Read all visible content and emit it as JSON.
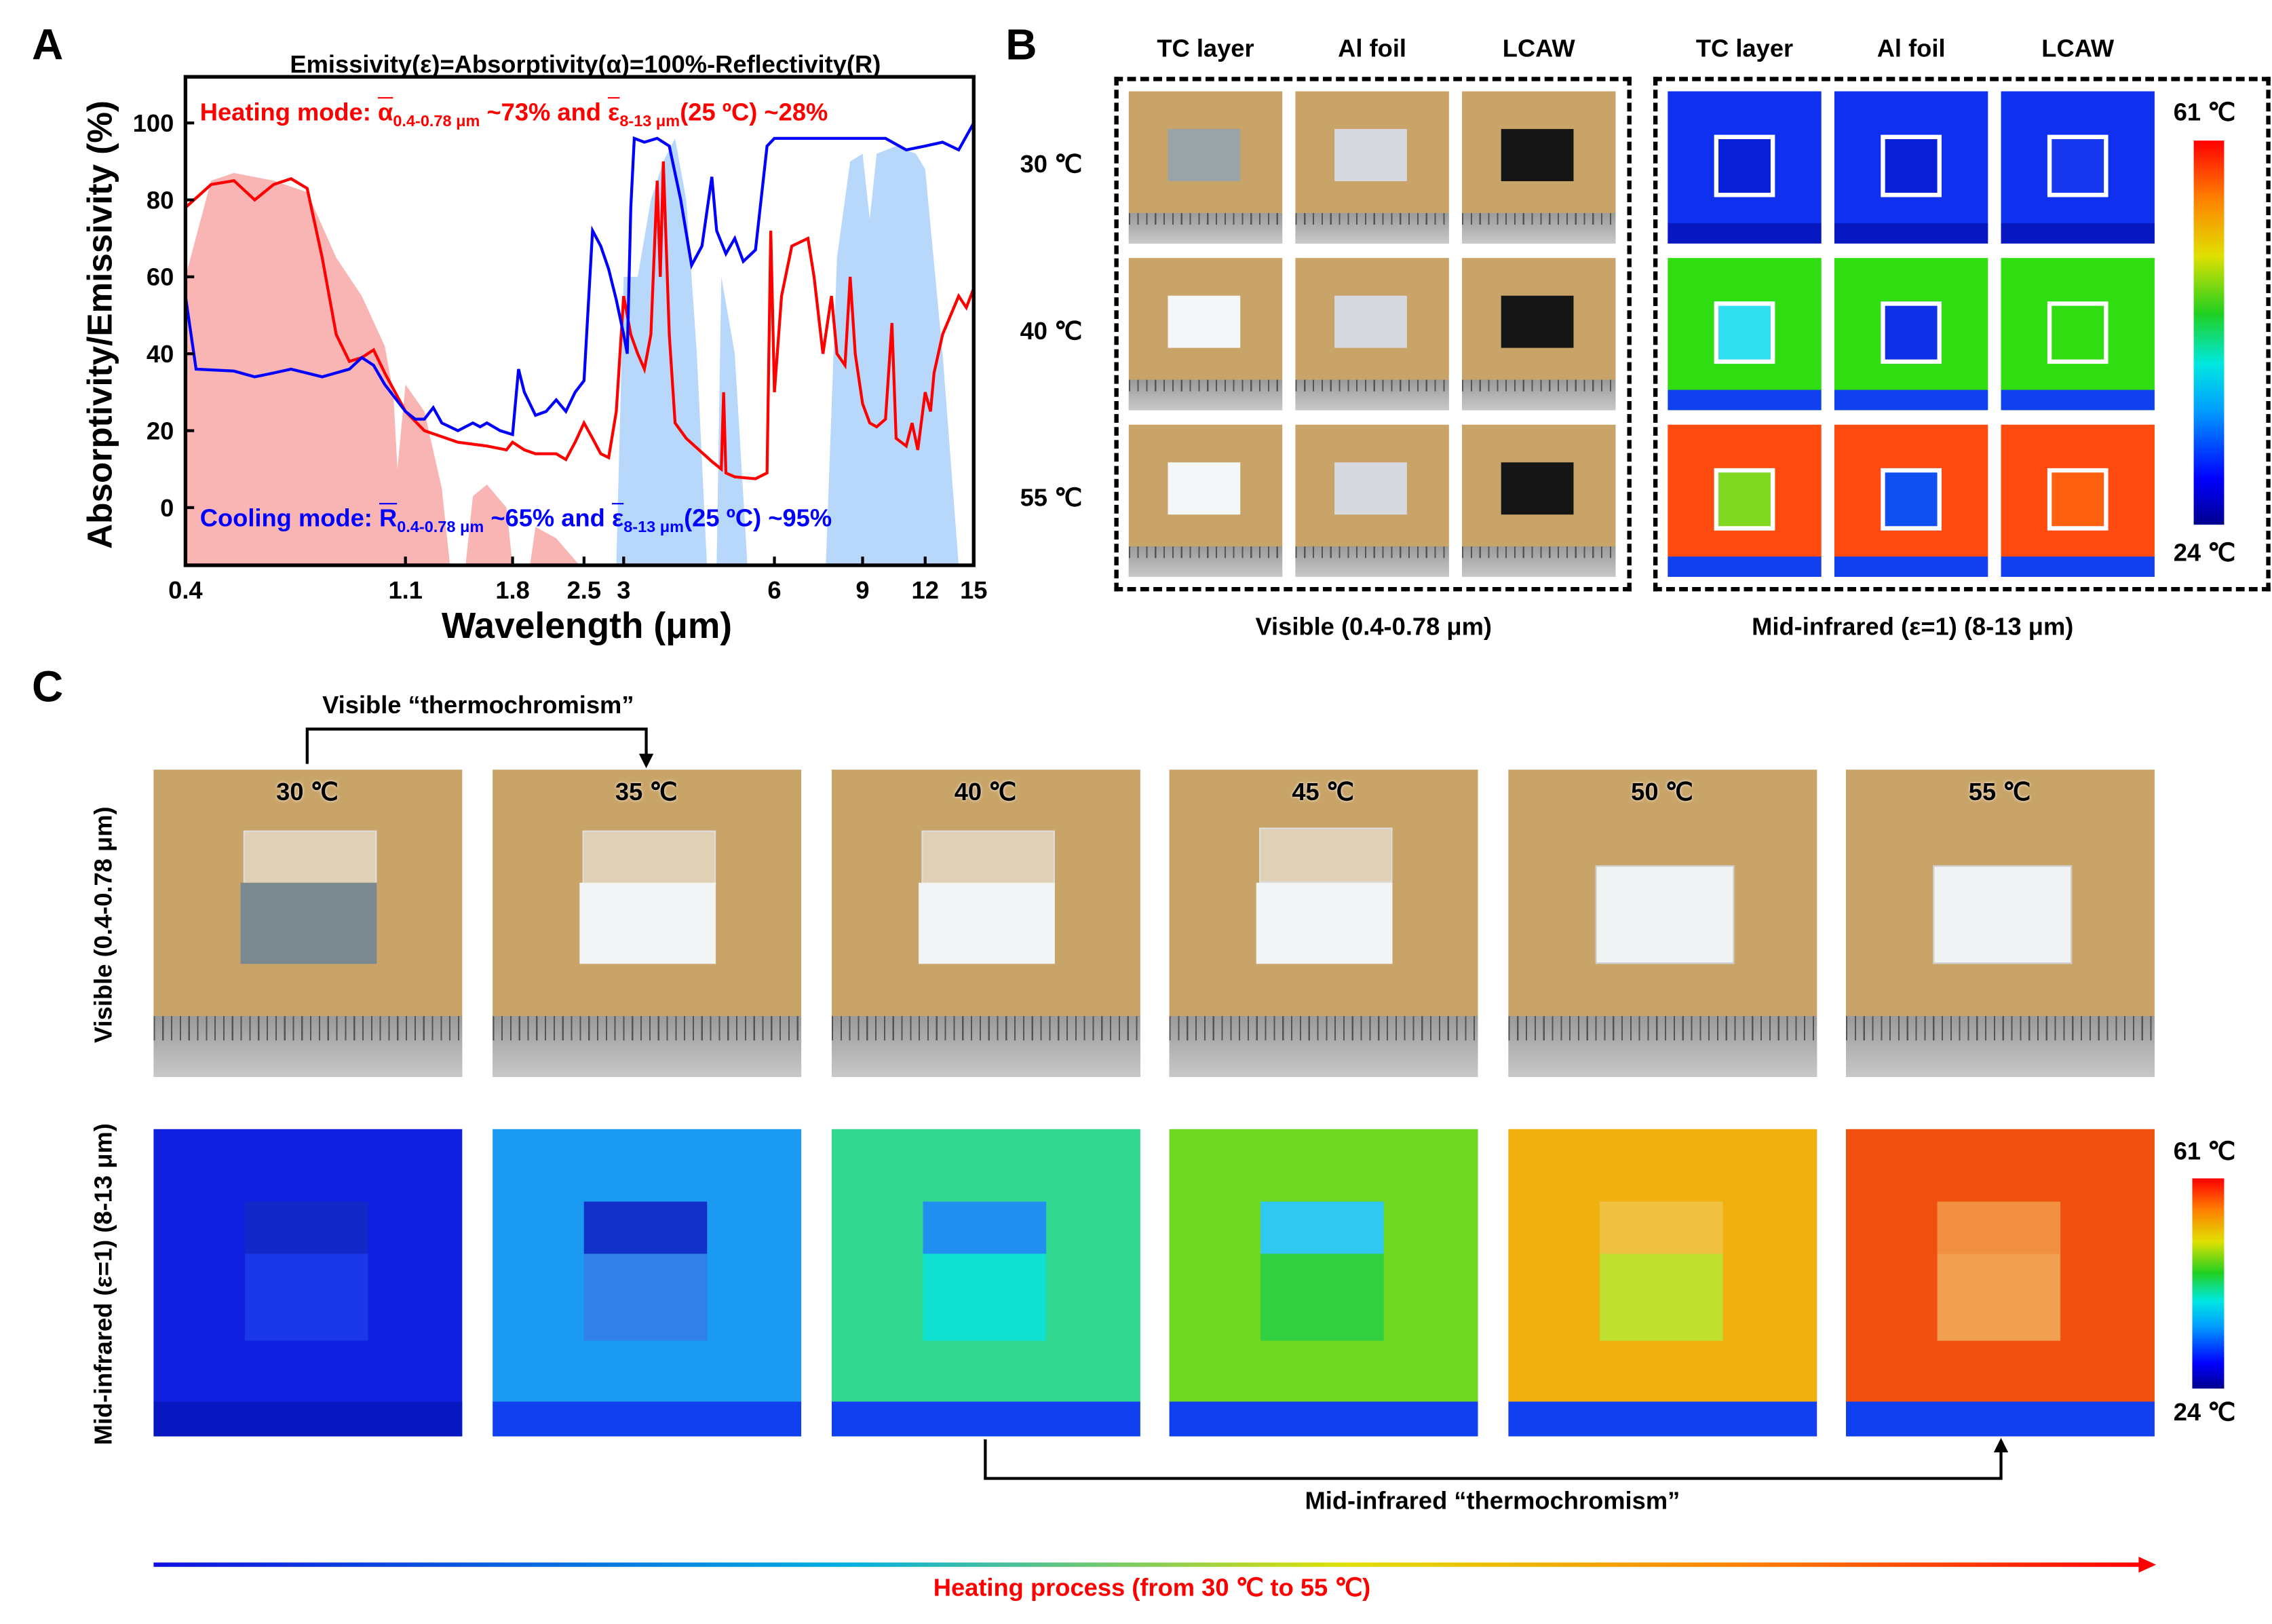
{
  "panel_labels": {
    "a": "A",
    "b": "B",
    "c": "C"
  },
  "panel_a": {
    "heating": {
      "prefix": "Heating mode:",
      "sym": "α",
      "sub1": "0.4-0.78 μm",
      "mid": "~73% and",
      "sym2": "ε",
      "sub2": "8-13 μm",
      "suffix": "(25 ºC) ~28%",
      "color": "#ff0000"
    },
    "cooling": {
      "prefix": "Cooling mode:",
      "sym": "R",
      "sub1": "0.4-0.78 μm",
      "mid": "~65% and",
      "sym2": "ε",
      "sub2": "8-13 μm",
      "suffix": "(25 ºC) ~95%",
      "color": "#0000ff"
    }
  },
  "chart_data": {
    "type": "line",
    "title": "Emissivity(ε)=Absorptivity(α)=100%-Reflectivity(R)",
    "xlabel": "Wavelength (μm)",
    "ylabel": "Absorptivity/Emissivity (%)",
    "xscale": "log",
    "xlim": [
      0.4,
      15
    ],
    "ylim": [
      -15,
      112
    ],
    "xticks": [
      "0.4",
      "1.1",
      "1.8",
      "2.5",
      "3",
      "6",
      "9",
      "12",
      "15"
    ],
    "yticks": [
      "0",
      "20",
      "40",
      "60",
      "80",
      "100"
    ],
    "grid": false,
    "series": [
      {
        "color": "#ff0000",
        "x": [
          0.4,
          0.45,
          0.5,
          0.55,
          0.6,
          0.65,
          0.7,
          0.75,
          0.8,
          0.85,
          0.9,
          0.95,
          1.0,
          1.1,
          1.2,
          1.4,
          1.6,
          1.75,
          1.8,
          1.9,
          2.0,
          2.2,
          2.3,
          2.4,
          2.5,
          2.6,
          2.7,
          2.8,
          2.9,
          3.0,
          3.1,
          3.2,
          3.3,
          3.4,
          3.5,
          3.55,
          3.6,
          3.7,
          3.8,
          4.0,
          4.5,
          4.7,
          4.75,
          4.8,
          5.0,
          5.5,
          5.8,
          5.9,
          6.0,
          6.2,
          6.5,
          7.0,
          7.2,
          7.5,
          7.8,
          8.0,
          8.3,
          8.5,
          8.7,
          9.0,
          9.3,
          9.6,
          10.0,
          10.3,
          10.5,
          11.0,
          11.3,
          11.6,
          12.0,
          12.3,
          12.5,
          13,
          14,
          14.5,
          15
        ],
        "y": [
          78,
          84,
          85,
          80,
          84,
          85.5,
          83,
          65,
          45,
          38,
          39,
          41,
          35,
          25,
          20,
          17,
          16,
          15,
          17,
          15,
          14,
          14,
          12.5,
          17,
          22,
          18,
          14,
          13,
          25,
          55,
          45,
          40,
          36,
          45,
          85,
          60,
          90,
          45,
          22,
          18,
          12,
          10,
          30,
          9,
          8,
          7.5,
          9,
          72,
          30,
          55,
          68,
          70,
          60,
          40,
          55,
          40,
          37,
          60,
          40,
          27,
          22,
          21,
          23,
          48,
          18,
          16,
          22,
          15,
          30,
          25,
          35,
          45,
          55,
          52,
          57
        ]
      },
      {
        "color": "#0000ff",
        "x": [
          0.4,
          0.42,
          0.5,
          0.55,
          0.6,
          0.65,
          0.75,
          0.85,
          0.9,
          0.95,
          1.0,
          1.1,
          1.15,
          1.2,
          1.25,
          1.3,
          1.4,
          1.5,
          1.55,
          1.6,
          1.7,
          1.8,
          1.85,
          1.9,
          2.0,
          2.1,
          2.2,
          2.3,
          2.4,
          2.5,
          2.6,
          2.7,
          2.8,
          2.9,
          3.0,
          3.05,
          3.1,
          3.15,
          3.3,
          3.5,
          3.7,
          3.9,
          4.1,
          4.3,
          4.5,
          4.6,
          4.8,
          5.0,
          5.2,
          5.5,
          5.8,
          6.0,
          7,
          8,
          9,
          10,
          11,
          12,
          13,
          14,
          15
        ],
        "y": [
          55,
          36,
          35.5,
          34,
          35,
          36,
          34,
          36,
          39,
          37,
          32,
          25,
          23,
          23,
          26,
          22,
          20,
          22,
          21,
          22,
          20,
          19,
          36,
          30,
          24,
          25,
          28,
          25,
          30,
          33,
          72,
          68,
          62,
          54,
          45,
          40,
          78,
          96,
          95,
          96,
          94,
          80,
          63,
          68,
          86,
          72,
          66,
          70,
          64,
          67,
          94,
          96,
          96,
          96,
          96,
          96,
          93,
          94,
          95,
          93,
          100
        ]
      }
    ],
    "shading": [
      {
        "color": "#f9b4b4",
        "x": [
          0.4,
          0.4,
          0.45,
          0.5,
          0.6,
          0.7,
          0.8,
          0.9,
          1.0,
          1.04,
          1.06,
          1.1,
          1.2,
          1.3,
          1.35,
          1.45,
          1.5,
          1.6,
          1.75,
          1.8,
          1.95,
          2.0,
          2.2,
          2.45
        ],
        "y": [
          -15,
          60,
          85,
          87,
          85,
          82,
          65,
          55,
          42,
          30,
          10,
          32,
          25,
          5,
          -15,
          -15,
          3,
          6,
          0,
          -15,
          -15,
          -5,
          -8,
          -15
        ]
      },
      {
        "color": "#b7d8fa",
        "x": [
          2.9,
          3.0,
          3.2,
          3.4,
          3.6,
          3.8,
          4.0,
          4.2,
          4.4,
          4.6,
          4.7,
          5.0,
          5.3,
          7.6,
          8.0,
          8.5,
          9.0,
          9.3,
          9.6,
          10.5,
          11.5,
          12,
          13,
          14
        ],
        "y": [
          -15,
          60,
          60,
          80,
          90,
          96,
          80,
          40,
          -15,
          -15,
          60,
          40,
          -15,
          -15,
          65,
          90,
          92,
          75,
          92,
          94,
          92,
          88,
          40,
          -15
        ]
      }
    ]
  },
  "panel_b": {
    "columns": [
      "TC layer",
      "Al foil",
      "LCAW"
    ],
    "rows": [
      "30 ℃",
      "40 ℃",
      "55 ℃"
    ],
    "visible_caption": "Visible (0.4-0.78 μm)",
    "ir_caption": "Mid-infrared (ε=1) (8-13 μm)",
    "colorbar_max": "61 ℃",
    "colorbar_min": "24 ℃",
    "sample_colors": [
      "#9aa3a8",
      "#d8d8e0",
      "#151515"
    ],
    "tc_sample_colors": [
      "#9aa3a8",
      "#f4f6f8",
      "#f4f6f8"
    ],
    "ir_background": [
      "#1030f0",
      "#30dd10",
      "#ff4a10"
    ],
    "ir_samples": [
      [
        "#0a20d8",
        "#0a20d8",
        "#1838f0"
      ],
      [
        "#30e0f0",
        "#1030e8",
        "#30dd10"
      ],
      [
        "#80d820",
        "#1050f0",
        "#ff6010"
      ]
    ]
  },
  "panel_c": {
    "temperatures": [
      "30 ℃",
      "35 ℃",
      "40 ℃",
      "45 ℃",
      "50 ℃",
      "55 ℃"
    ],
    "visible_row_label": "Visible (0.4-0.78 μm)",
    "ir_row_label": "Mid-infrared (ε=1) (8-13 μm)",
    "visible_bracket_label": "Visible “thermochromism”",
    "ir_bracket_label": "Mid-infrared “thermochromism”",
    "heating_label": "Heating process (from 30 ℃ to 55 ℃)",
    "colorbar_max": "61 ℃",
    "colorbar_min": "24 ℃",
    "sample_colors": [
      "#7a8890",
      "#f2f4f6",
      "#f2f4f6",
      "#f2f4f6",
      "#f0f2f4",
      "#f0f2f4"
    ],
    "ir_background": [
      "#1020e0",
      "#1a9af0",
      "#30d890",
      "#70d820",
      "#f0b010",
      "#f05010"
    ],
    "ir_sample_top": [
      "#1428c8",
      "#1030c8",
      "#2090f0",
      "#30c8f0",
      "#f0c040",
      "#f09040"
    ],
    "ir_sample_bottom": [
      "#1a38e8",
      "#3080e8",
      "#10e0d0",
      "#30d040",
      "#c0e030",
      "#f0a050"
    ]
  }
}
